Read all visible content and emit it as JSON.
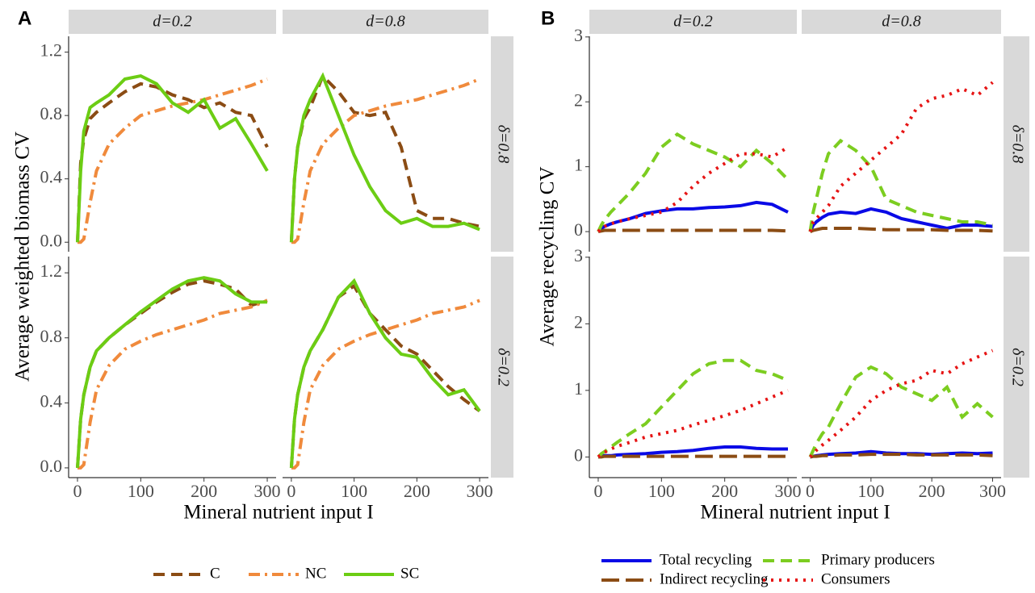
{
  "chart_data": [
    {
      "type": "line",
      "panel": "A",
      "ylabel": "Average weighted biomass CV",
      "xlabel": "Mineral nutrient input I",
      "col_labels": [
        "d=0.2",
        "d=0.8"
      ],
      "row_labels": [
        "δ=0.8",
        "δ=0.2"
      ],
      "x": [
        0,
        5,
        10,
        20,
        30,
        50,
        75,
        100,
        125,
        150,
        175,
        200,
        225,
        250,
        275,
        300
      ],
      "xlim": [
        -14,
        314
      ],
      "xticks": [
        0,
        100,
        200,
        300
      ],
      "ylim": [
        -0.06,
        1.3
      ],
      "yticks": [
        {
          "value": 0,
          "label": "0.0"
        },
        0.4,
        0.8,
        1.2
      ],
      "series": [
        {
          "name": "C",
          "color": "#8b4c14",
          "style": "dashed"
        },
        {
          "name": "NC",
          "color": "#f08a3c",
          "style": "dashdot"
        },
        {
          "name": "SC",
          "color": "#6ccd14",
          "style": "solid"
        }
      ],
      "facets": [
        {
          "row": 0,
          "col": 0,
          "values": [
            [
              0,
              0.5,
              0.65,
              0.78,
              0.82,
              0.88,
              0.95,
              1.0,
              0.98,
              0.93,
              0.9,
              0.85,
              0.88,
              0.82,
              0.8,
              0.6
            ],
            [
              0,
              0,
              0.02,
              0.25,
              0.45,
              0.62,
              0.72,
              0.8,
              0.83,
              0.86,
              0.88,
              0.9,
              0.93,
              0.96,
              0.99,
              1.03
            ],
            [
              0,
              0.45,
              0.7,
              0.85,
              0.88,
              0.93,
              1.03,
              1.05,
              1.0,
              0.88,
              0.82,
              0.9,
              0.72,
              0.78,
              0.62,
              0.45
            ]
          ]
        },
        {
          "row": 0,
          "col": 1,
          "values": [
            [
              0,
              0.4,
              0.6,
              0.78,
              0.85,
              1.05,
              0.95,
              0.82,
              0.8,
              0.82,
              0.6,
              0.2,
              0.15,
              0.15,
              0.12,
              0.1
            ],
            [
              0,
              0,
              0.02,
              0.25,
              0.45,
              0.62,
              0.72,
              0.8,
              0.83,
              0.86,
              0.88,
              0.9,
              0.93,
              0.96,
              0.99,
              1.03
            ],
            [
              0,
              0.4,
              0.6,
              0.8,
              0.9,
              1.05,
              0.8,
              0.55,
              0.35,
              0.2,
              0.12,
              0.15,
              0.1,
              0.1,
              0.12,
              0.08
            ]
          ]
        },
        {
          "row": 1,
          "col": 0,
          "values": [
            [
              0,
              0.3,
              0.45,
              0.62,
              0.72,
              0.8,
              0.88,
              0.95,
              1.02,
              1.08,
              1.13,
              1.15,
              1.13,
              1.1,
              1.0,
              1.03
            ],
            [
              0,
              0,
              0.02,
              0.28,
              0.48,
              0.63,
              0.73,
              0.78,
              0.82,
              0.85,
              0.88,
              0.91,
              0.95,
              0.97,
              0.99,
              1.03
            ],
            [
              0,
              0.3,
              0.45,
              0.62,
              0.72,
              0.8,
              0.88,
              0.96,
              1.03,
              1.1,
              1.15,
              1.17,
              1.15,
              1.07,
              1.02,
              1.02
            ]
          ]
        },
        {
          "row": 1,
          "col": 1,
          "values": [
            [
              0,
              0.3,
              0.45,
              0.62,
              0.72,
              0.85,
              1.05,
              1.12,
              0.95,
              0.85,
              0.75,
              0.7,
              0.6,
              0.5,
              0.42,
              0.35
            ],
            [
              0,
              0,
              0.02,
              0.28,
              0.48,
              0.63,
              0.73,
              0.78,
              0.82,
              0.85,
              0.88,
              0.91,
              0.95,
              0.97,
              0.99,
              1.03
            ],
            [
              0,
              0.3,
              0.45,
              0.62,
              0.72,
              0.85,
              1.05,
              1.15,
              0.95,
              0.8,
              0.7,
              0.68,
              0.55,
              0.45,
              0.48,
              0.35
            ]
          ]
        }
      ]
    },
    {
      "type": "line",
      "panel": "B",
      "ylabel": "Average recycling CV",
      "xlabel": "Mineral nutrient input I",
      "col_labels": [
        "d=0.2",
        "d=0.8"
      ],
      "row_labels": [
        "δ=0.8",
        "δ=0.2"
      ],
      "x": [
        0,
        5,
        10,
        20,
        30,
        50,
        75,
        100,
        125,
        150,
        175,
        200,
        225,
        250,
        275,
        300
      ],
      "xlim": [
        -14,
        314
      ],
      "xticks": [
        0,
        100,
        200,
        300
      ],
      "ylim": [
        -0.31,
        3.01
      ],
      "yticks": [
        0,
        1,
        2,
        3
      ],
      "series": [
        {
          "name": "Total recycling",
          "color": "#0a0ae6",
          "style": "solid"
        },
        {
          "name": "Indirect recycling",
          "color": "#8b4c14",
          "style": "longdash"
        },
        {
          "name": "Primary producers",
          "color": "#7ccd20",
          "style": "dashed"
        },
        {
          "name": "Consumers",
          "color": "#e61414",
          "style": "dotted"
        }
      ],
      "facets": [
        {
          "row": 0,
          "col": 0,
          "values": [
            [
              0,
              0.05,
              0.08,
              0.12,
              0.15,
              0.2,
              0.28,
              0.32,
              0.35,
              0.35,
              0.37,
              0.38,
              0.4,
              0.45,
              0.42,
              0.3
            ],
            [
              0,
              0.01,
              0.02,
              0.02,
              0.02,
              0.02,
              0.02,
              0.02,
              0.02,
              0.02,
              0.02,
              0.02,
              0.02,
              0.02,
              0.02,
              0.01
            ],
            [
              0,
              0.1,
              0.18,
              0.3,
              0.4,
              0.6,
              0.9,
              1.3,
              1.5,
              1.35,
              1.25,
              1.15,
              1.0,
              1.25,
              1.05,
              0.8
            ],
            [
              0,
              0.05,
              0.08,
              0.12,
              0.15,
              0.2,
              0.25,
              0.3,
              0.45,
              0.7,
              0.9,
              1.05,
              1.2,
              1.2,
              1.15,
              1.3
            ]
          ]
        },
        {
          "row": 0,
          "col": 1,
          "values": [
            [
              0,
              0.1,
              0.15,
              0.22,
              0.27,
              0.3,
              0.28,
              0.35,
              0.3,
              0.2,
              0.15,
              0.1,
              0.05,
              0.1,
              0.1,
              0.08
            ],
            [
              0,
              0.02,
              0.03,
              0.05,
              0.05,
              0.05,
              0.05,
              0.04,
              0.03,
              0.03,
              0.03,
              0.03,
              0.02,
              0.02,
              0.02,
              0.01
            ],
            [
              0,
              0.3,
              0.5,
              0.9,
              1.2,
              1.4,
              1.25,
              1.0,
              0.5,
              0.4,
              0.3,
              0.25,
              0.2,
              0.15,
              0.15,
              0.1
            ],
            [
              0,
              0.15,
              0.2,
              0.3,
              0.4,
              0.7,
              0.9,
              1.1,
              1.3,
              1.5,
              1.9,
              2.05,
              2.1,
              2.2,
              2.1,
              2.3
            ]
          ]
        },
        {
          "row": 1,
          "col": 0,
          "values": [
            [
              0,
              0.01,
              0.02,
              0.02,
              0.03,
              0.04,
              0.05,
              0.07,
              0.08,
              0.1,
              0.13,
              0.15,
              0.15,
              0.13,
              0.12,
              0.12
            ],
            [
              0,
              0,
              0.01,
              0.01,
              0.01,
              0.01,
              0.01,
              0.01,
              0.01,
              0.01,
              0.01,
              0.01,
              0.01,
              0.01,
              0.01,
              0.01
            ],
            [
              0,
              0.05,
              0.08,
              0.15,
              0.22,
              0.35,
              0.5,
              0.75,
              1.0,
              1.25,
              1.4,
              1.45,
              1.45,
              1.3,
              1.25,
              1.15
            ],
            [
              0,
              0.04,
              0.07,
              0.12,
              0.16,
              0.22,
              0.3,
              0.35,
              0.4,
              0.48,
              0.55,
              0.62,
              0.7,
              0.8,
              0.9,
              1.0
            ]
          ]
        },
        {
          "row": 1,
          "col": 1,
          "values": [
            [
              0,
              0.01,
              0.02,
              0.03,
              0.04,
              0.05,
              0.06,
              0.08,
              0.06,
              0.05,
              0.05,
              0.04,
              0.05,
              0.06,
              0.05,
              0.06
            ],
            [
              0,
              0.01,
              0.01,
              0.02,
              0.02,
              0.03,
              0.03,
              0.04,
              0.04,
              0.04,
              0.03,
              0.03,
              0.03,
              0.03,
              0.03,
              0.02
            ],
            [
              0,
              0.1,
              0.2,
              0.35,
              0.45,
              0.8,
              1.2,
              1.35,
              1.25,
              1.05,
              0.95,
              0.85,
              1.05,
              0.6,
              0.8,
              0.6
            ],
            [
              0,
              0.05,
              0.1,
              0.18,
              0.25,
              0.4,
              0.6,
              0.85,
              1.0,
              1.1,
              1.15,
              1.3,
              1.25,
              1.4,
              1.5,
              1.6
            ]
          ]
        }
      ]
    }
  ]
}
